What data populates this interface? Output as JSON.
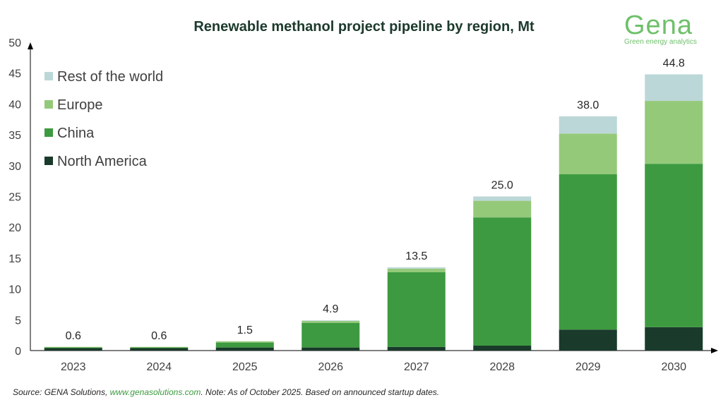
{
  "logo": {
    "word": "Gena",
    "tagline": "Green energy analytics"
  },
  "source": {
    "prefix": "Source: GENA Solutions, ",
    "link": "www.genasolutions.com",
    "suffix": ". Note: As of October 2025. Based on announced startup dates."
  },
  "chart_data": {
    "type": "bar",
    "stacked": true,
    "title": "Renewable methanol project pipeline by region, Mt",
    "categories": [
      "2023",
      "2024",
      "2025",
      "2026",
      "2027",
      "2028",
      "2029",
      "2030"
    ],
    "series": [
      {
        "name": "North America",
        "color": "#1a3a2b",
        "values": [
          0.4,
          0.4,
          0.5,
          0.5,
          0.6,
          0.8,
          3.4,
          3.8
        ]
      },
      {
        "name": "China",
        "color": "#3d9a40",
        "values": [
          0.1,
          0.1,
          0.8,
          4.0,
          12.1,
          20.8,
          25.2,
          26.5
        ]
      },
      {
        "name": "Europe",
        "color": "#95c97a",
        "values": [
          0.1,
          0.1,
          0.2,
          0.3,
          0.6,
          2.7,
          6.6,
          10.2
        ]
      },
      {
        "name": "Rest of the world",
        "color": "#bcd7d7",
        "values": [
          0.0,
          0.0,
          0.0,
          0.1,
          0.2,
          0.7,
          2.8,
          4.3
        ]
      }
    ],
    "totals": [
      "0.6",
      "0.6",
      "1.5",
      "4.9",
      "13.5",
      "25.0",
      "38.0",
      "44.8"
    ],
    "ylim": [
      0,
      50
    ],
    "yticks": [
      0,
      5,
      10,
      15,
      20,
      25,
      30,
      35,
      40,
      45,
      50
    ],
    "grid": false,
    "legend": "top-left",
    "legend_order": [
      "Rest of the world",
      "Europe",
      "China",
      "North America"
    ]
  }
}
